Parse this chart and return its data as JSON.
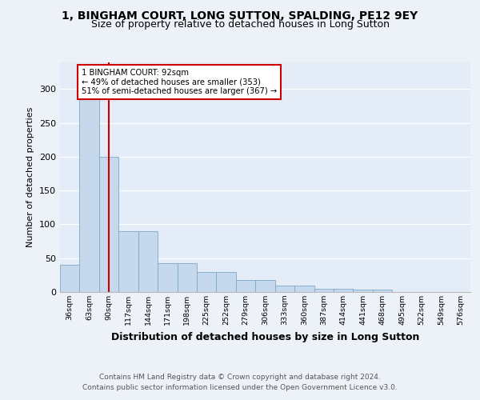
{
  "title1": "1, BINGHAM COURT, LONG SUTTON, SPALDING, PE12 9EY",
  "title2": "Size of property relative to detached houses in Long Sutton",
  "xlabel": "Distribution of detached houses by size in Long Sutton",
  "ylabel": "Number of detached properties",
  "footer1": "Contains HM Land Registry data © Crown copyright and database right 2024.",
  "footer2": "Contains public sector information licensed under the Open Government Licence v3.0.",
  "categories": [
    "36sqm",
    "63sqm",
    "90sqm",
    "117sqm",
    "144sqm",
    "171sqm",
    "198sqm",
    "225sqm",
    "252sqm",
    "279sqm",
    "306sqm",
    "333sqm",
    "360sqm",
    "387sqm",
    "414sqm",
    "441sqm",
    "468sqm",
    "495sqm",
    "522sqm",
    "549sqm",
    "576sqm"
  ],
  "values": [
    40,
    290,
    200,
    90,
    90,
    42,
    42,
    30,
    30,
    18,
    18,
    9,
    9,
    5,
    5,
    3,
    3,
    0,
    0,
    0,
    0
  ],
  "bar_color": "#c5d8ec",
  "bar_edge_color": "#7aaac8",
  "red_line_index": 2,
  "annotation_text": "1 BINGHAM COURT: 92sqm\n← 49% of detached houses are smaller (353)\n51% of semi-detached houses are larger (367) →",
  "annotation_box_color": "#ffffff",
  "annotation_border_color": "#cc0000",
  "red_line_color": "#cc0000",
  "ylim": [
    0,
    340
  ],
  "yticks": [
    0,
    50,
    100,
    150,
    200,
    250,
    300
  ],
  "background_color": "#edf2f9",
  "plot_bg_color": "#e4ecf7",
  "title1_fontsize": 10,
  "title2_fontsize": 9,
  "ylabel_fontsize": 8,
  "xlabel_fontsize": 9
}
